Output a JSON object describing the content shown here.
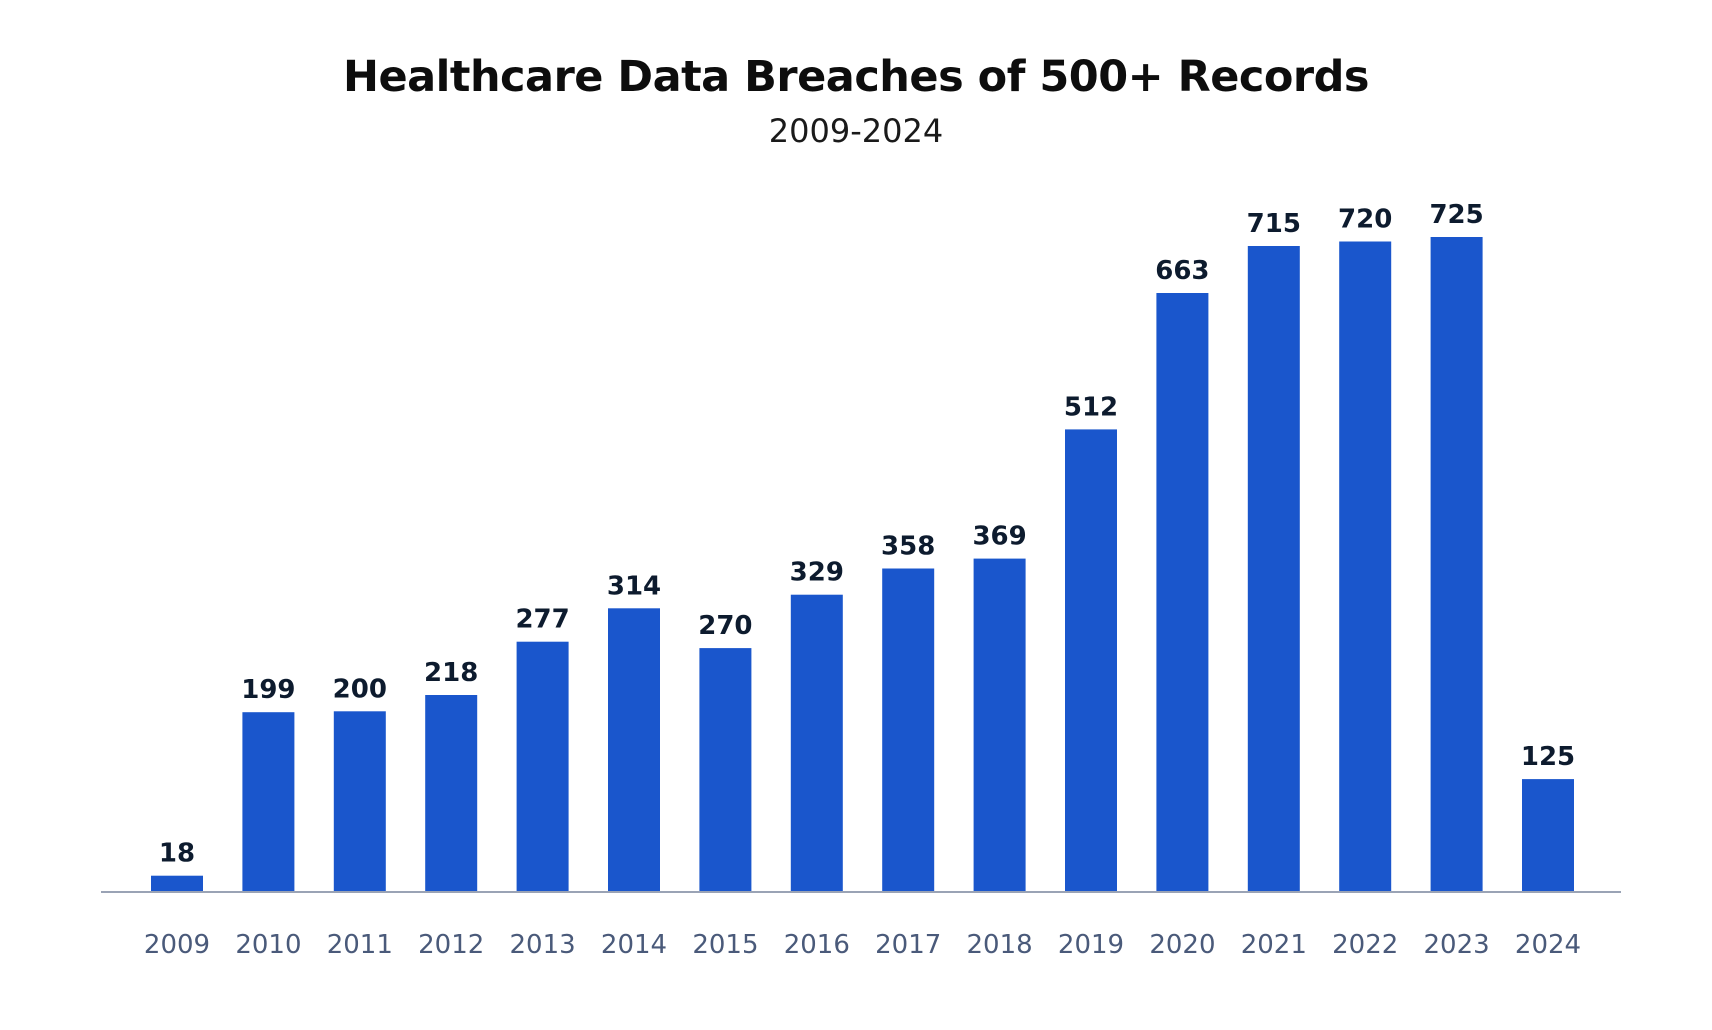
{
  "chart_data": {
    "type": "bar",
    "title": "Healthcare Data Breaches of 500+ Records",
    "subtitle": "2009-2024",
    "xlabel": "",
    "ylabel": "",
    "ylim": [
      0,
      800
    ],
    "grid": false,
    "categories": [
      "2009",
      "2010",
      "2011",
      "2012",
      "2013",
      "2014",
      "2015",
      "2016",
      "2017",
      "2018",
      "2019",
      "2020",
      "2021",
      "2022",
      "2023",
      "2024"
    ],
    "values": [
      18,
      199,
      200,
      218,
      277,
      314,
      270,
      329,
      358,
      369,
      512,
      663,
      715,
      720,
      725,
      125
    ],
    "bar_color": "#1a56cc",
    "label_color": "#0d1b2e",
    "tick_color": "#4a5a7a"
  }
}
